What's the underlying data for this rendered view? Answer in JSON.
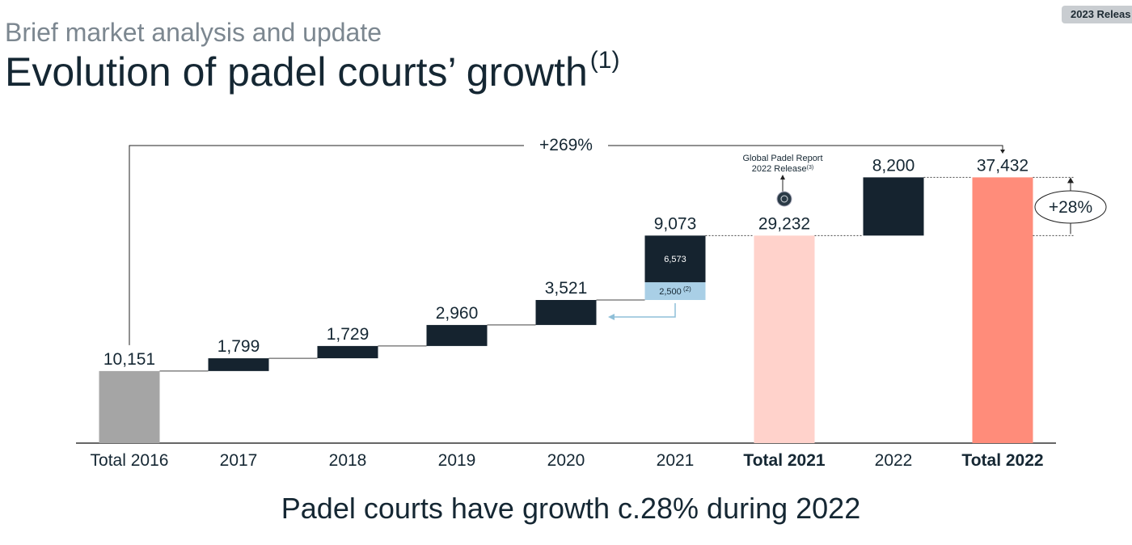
{
  "badge": "2023 Releas",
  "header": {
    "subtitle": "Brief market analysis and update",
    "title": "Evolution of padel courts’ growth",
    "title_footnote": "(1)"
  },
  "takeaway": "Padel courts have growth c.28% during 2022",
  "colors": {
    "dark_navy": "#15232f",
    "total_2016": "#a5a5a5",
    "total_2021": "#ffd2cb",
    "total_2022": "#ff8c7a",
    "light_blue": "#a9cfe6",
    "light_blue_line": "#8fbfd8",
    "text": "#152733"
  },
  "chart_data": {
    "type": "bar",
    "subtype": "waterfall",
    "categories": [
      "Total 2016",
      "2017",
      "2018",
      "2019",
      "2020",
      "2021",
      "Total 2021",
      "2022",
      "Total 2022"
    ],
    "bold_categories": [
      "Total 2021",
      "Total 2022"
    ],
    "bars": [
      {
        "category": "Total 2016",
        "kind": "total",
        "base": 0,
        "value": 10151,
        "label": "10,151"
      },
      {
        "category": "2017",
        "kind": "increment",
        "base": 10151,
        "value": 1799,
        "label": "1,799"
      },
      {
        "category": "2018",
        "kind": "increment",
        "base": 11950,
        "value": 1729,
        "label": "1,729"
      },
      {
        "category": "2019",
        "kind": "increment",
        "base": 13679,
        "value": 2960,
        "label": "2,960"
      },
      {
        "category": "2020",
        "kind": "increment",
        "base": 16639,
        "value": 3521,
        "label": "3,521"
      },
      {
        "category": "2021",
        "kind": "increment",
        "base": 20159,
        "value": 9073,
        "label": "9,073",
        "segments": [
          {
            "value": 2500,
            "label": "2,500",
            "footnote": "(2)"
          },
          {
            "value": 6573,
            "label": "6,573"
          }
        ]
      },
      {
        "category": "Total 2021",
        "kind": "total",
        "base": 0,
        "value": 29232,
        "label": "29,232"
      },
      {
        "category": "2022",
        "kind": "increment",
        "base": 29232,
        "value": 8200,
        "label": "8,200"
      },
      {
        "category": "Total 2022",
        "kind": "total",
        "base": 0,
        "value": 37432,
        "label": "37,432"
      }
    ],
    "annotations": {
      "overall_growth": "+269%",
      "growth_2022": "+28%",
      "report_label_line1": "Global Padel Report",
      "report_label_line2": "2022 Release",
      "report_label_footnote": "(3)"
    }
  }
}
